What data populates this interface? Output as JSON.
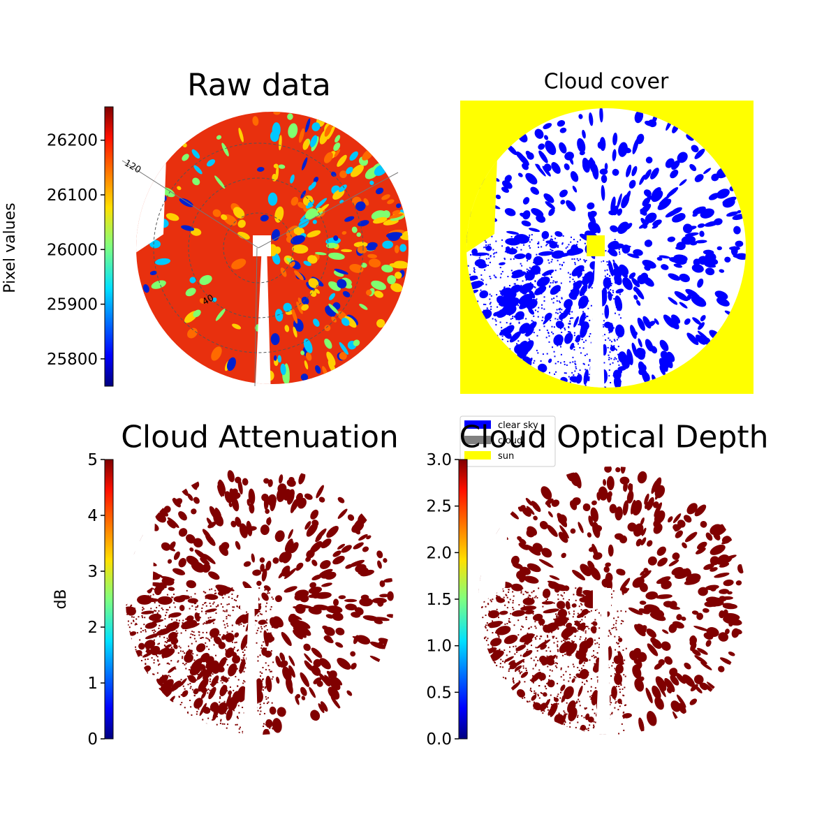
{
  "chart_data": [
    {
      "type": "image",
      "title": "Raw data",
      "colormap": "jet",
      "ylabel": "Pixel values",
      "ylim": [
        25750,
        26261
      ],
      "yticks": [
        25800,
        25900,
        26000,
        26100,
        26200
      ],
      "annotations": [
        "120",
        "40"
      ]
    },
    {
      "type": "image",
      "title": "Cloud cover",
      "legend": [
        {
          "name": "clear sky",
          "color": "#0000ff"
        },
        {
          "name": "cloud",
          "color": "#808080"
        },
        {
          "name": "sun",
          "color": "#ffff00"
        }
      ]
    },
    {
      "type": "image",
      "title": "Cloud Attenuation",
      "colormap": "jet",
      "ylabel": "dB",
      "ylim": [
        0,
        5
      ],
      "yticks": [
        0,
        1,
        2,
        3,
        4,
        5
      ]
    },
    {
      "type": "image",
      "title": "Cloud Optical Depth",
      "colormap": "jet",
      "ylim": [
        0,
        3
      ],
      "yticks": [
        {
          "value": 0,
          "label": "0.0"
        },
        {
          "value": 0.5,
          "label": "0.5"
        },
        {
          "value": 1,
          "label": "1.0"
        },
        {
          "value": 1.5,
          "label": "1.5"
        },
        {
          "value": 2,
          "label": "2.0"
        },
        {
          "value": 2.5,
          "label": "2.5"
        },
        {
          "value": 3,
          "label": "3.0"
        }
      ]
    }
  ]
}
